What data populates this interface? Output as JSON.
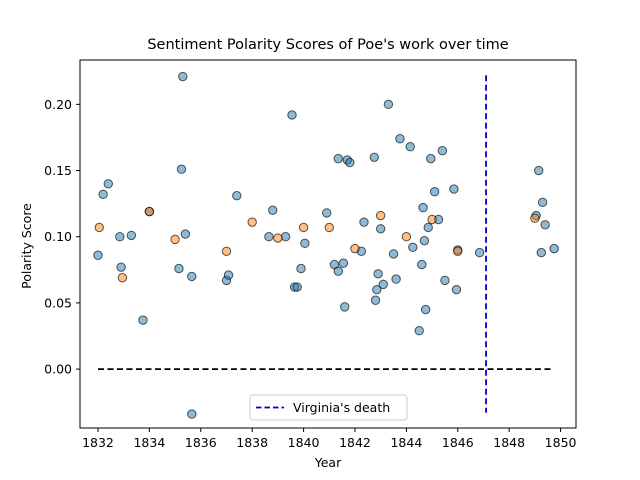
{
  "chart_data": {
    "type": "scatter",
    "title": "Sentiment Polarity Scores of Poe's work over time",
    "xlabel": "Year",
    "ylabel": "Polarity Score",
    "xlim": [
      1831.3,
      1850.6
    ],
    "ylim": [
      -0.0445,
      0.2335
    ],
    "xticks": [
      1832,
      1834,
      1836,
      1838,
      1840,
      1842,
      1844,
      1846,
      1848,
      1850
    ],
    "yticks": [
      0.0,
      0.05,
      0.1,
      0.15,
      0.2
    ],
    "ytick_labels": [
      "0.00",
      "0.05",
      "0.10",
      "0.15",
      "0.20"
    ],
    "grid": false,
    "legend": {
      "position": "bottom-center",
      "entries": [
        "Virginia's death"
      ]
    },
    "colors": {
      "blue": "#1f77b4",
      "orange": "#ff7f0e",
      "vline": "#0000cc",
      "hline": "#000000"
    },
    "series": [
      {
        "color": "#1f77b4",
        "points": [
          [
            1832.0,
            0.086
          ],
          [
            1832.2,
            0.132
          ],
          [
            1832.4,
            0.14
          ],
          [
            1832.85,
            0.1
          ],
          [
            1832.9,
            0.077
          ],
          [
            1833.3,
            0.101
          ],
          [
            1833.75,
            0.037
          ],
          [
            1834.0,
            0.119
          ],
          [
            1835.15,
            0.076
          ],
          [
            1835.25,
            0.151
          ],
          [
            1835.3,
            0.221
          ],
          [
            1835.4,
            0.102
          ],
          [
            1835.65,
            -0.034
          ],
          [
            1835.65,
            0.07
          ],
          [
            1837.0,
            0.067
          ],
          [
            1837.08,
            0.071
          ],
          [
            1837.4,
            0.131
          ],
          [
            1838.65,
            0.1
          ],
          [
            1838.8,
            0.12
          ],
          [
            1839.3,
            0.1
          ],
          [
            1839.55,
            0.192
          ],
          [
            1839.65,
            0.062
          ],
          [
            1839.75,
            0.062
          ],
          [
            1839.9,
            0.076
          ],
          [
            1840.05,
            0.095
          ],
          [
            1840.9,
            0.118
          ],
          [
            1841.2,
            0.079
          ],
          [
            1841.35,
            0.159
          ],
          [
            1841.35,
            0.074
          ],
          [
            1841.55,
            0.08
          ],
          [
            1841.6,
            0.047
          ],
          [
            1841.7,
            0.158
          ],
          [
            1841.8,
            0.156
          ],
          [
            1842.25,
            0.089
          ],
          [
            1842.35,
            0.111
          ],
          [
            1842.75,
            0.16
          ],
          [
            1842.8,
            0.052
          ],
          [
            1842.85,
            0.06
          ],
          [
            1842.9,
            0.072
          ],
          [
            1843.0,
            0.106
          ],
          [
            1843.1,
            0.064
          ],
          [
            1843.3,
            0.2
          ],
          [
            1843.5,
            0.087
          ],
          [
            1843.6,
            0.068
          ],
          [
            1843.75,
            0.174
          ],
          [
            1844.15,
            0.168
          ],
          [
            1844.25,
            0.092
          ],
          [
            1844.5,
            0.029
          ],
          [
            1844.6,
            0.079
          ],
          [
            1844.65,
            0.122
          ],
          [
            1844.7,
            0.097
          ],
          [
            1844.75,
            0.045
          ],
          [
            1844.85,
            0.107
          ],
          [
            1844.95,
            0.159
          ],
          [
            1845.1,
            0.134
          ],
          [
            1845.25,
            0.113
          ],
          [
            1845.4,
            0.165
          ],
          [
            1845.5,
            0.067
          ],
          [
            1845.85,
            0.136
          ],
          [
            1845.95,
            0.06
          ],
          [
            1846.0,
            0.09
          ],
          [
            1846.85,
            0.088
          ],
          [
            1849.05,
            0.116
          ],
          [
            1849.15,
            0.15
          ],
          [
            1849.25,
            0.088
          ],
          [
            1849.3,
            0.126
          ],
          [
            1849.4,
            0.109
          ],
          [
            1849.75,
            0.091
          ]
        ]
      },
      {
        "color": "#ff7f0e",
        "points": [
          [
            1832.05,
            0.107
          ],
          [
            1832.95,
            0.069
          ],
          [
            1834.0,
            0.119
          ],
          [
            1835.0,
            0.098
          ],
          [
            1837.0,
            0.089
          ],
          [
            1838.0,
            0.111
          ],
          [
            1839.0,
            0.099
          ],
          [
            1840.0,
            0.107
          ],
          [
            1841.0,
            0.107
          ],
          [
            1842.0,
            0.091
          ],
          [
            1843.0,
            0.116
          ],
          [
            1844.0,
            0.1
          ],
          [
            1845.0,
            0.113
          ],
          [
            1846.0,
            0.089
          ],
          [
            1849.0,
            0.114
          ]
        ]
      }
    ],
    "vline": {
      "x": 1847.1,
      "y_range": [
        -0.033,
        0.222
      ],
      "label": "Virginia's death"
    },
    "hline": {
      "y": 0.0,
      "x_range": [
        1832.0,
        1849.7
      ]
    }
  }
}
